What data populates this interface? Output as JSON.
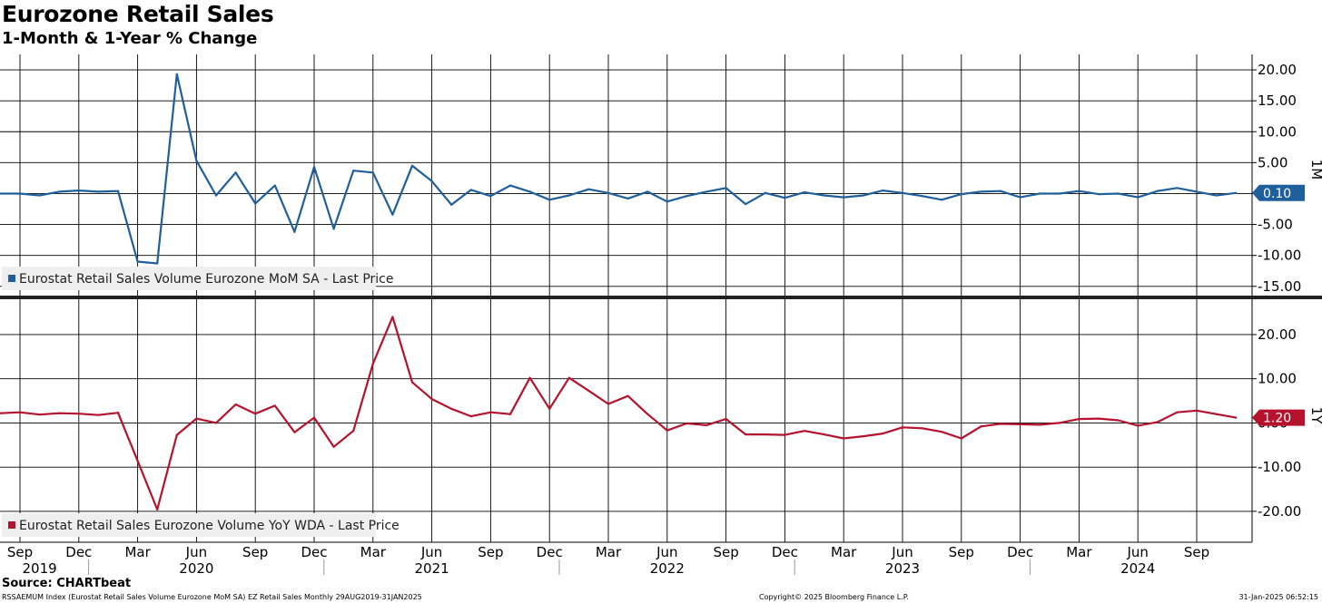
{
  "header": {
    "title": "Eurozone Retail Sales",
    "subtitle": "1-Month & 1-Year % Change"
  },
  "footer": {
    "source": "Source: CHARTbeat",
    "index_line": "RSSAEMUM Index (Eurostat Retail Sales Volume Eurozone MoM SA) EZ Retail Sales  Monthly 29AUG2019-31JAN2025",
    "copyright": "Copyright© 2025 Bloomberg Finance L.P.",
    "timestamp": "31-Jan-2025 06:52:15"
  },
  "colors": {
    "mom": "#1f5f9b",
    "yoy": "#b5122d",
    "grid": "#000000"
  },
  "chart_data": [
    {
      "type": "line",
      "panel": "top",
      "panel_label": "1M",
      "legend": "Eurostat Retail Sales Volume Eurozone MoM SA - Last Price",
      "legend_position": "bottom-left",
      "last_value_label": "0.10",
      "ylim": [
        -16.5,
        22.5
      ],
      "yticks": [
        "20.00",
        "15.00",
        "10.00",
        "5.00",
        "0.00",
        "-5.00",
        "-10.00",
        "-15.00"
      ],
      "grid": true,
      "series": [
        {
          "x": [
            "2019-08",
            "2019-09",
            "2019-10",
            "2019-11",
            "2019-12",
            "2020-01",
            "2020-02",
            "2020-03",
            "2020-04",
            "2020-05",
            "2020-06",
            "2020-07",
            "2020-08",
            "2020-09",
            "2020-10",
            "2020-11",
            "2020-12",
            "2021-01",
            "2021-02",
            "2021-03",
            "2021-04",
            "2021-05",
            "2021-06",
            "2021-07",
            "2021-08",
            "2021-09",
            "2021-10",
            "2021-11",
            "2021-12",
            "2022-01",
            "2022-02",
            "2022-03",
            "2022-04",
            "2022-05",
            "2022-06",
            "2022-07",
            "2022-08",
            "2022-09",
            "2022-10",
            "2022-11",
            "2022-12",
            "2023-01",
            "2023-02",
            "2023-03",
            "2023-04",
            "2023-05",
            "2023-06",
            "2023-07",
            "2023-08",
            "2023-09",
            "2023-10",
            "2023-11",
            "2023-12",
            "2024-01",
            "2024-02",
            "2024-03",
            "2024-04",
            "2024-05",
            "2024-06",
            "2024-07",
            "2024-08",
            "2024-09",
            "2024-10",
            "2024-11"
          ],
          "values": [
            0.0,
            0.0,
            -0.3,
            0.3,
            0.5,
            0.3,
            0.4,
            -11.0,
            -11.3,
            19.3,
            5.3,
            -0.3,
            3.4,
            -1.6,
            1.3,
            -6.2,
            4.3,
            -5.7,
            3.7,
            3.4,
            -3.4,
            4.5,
            2.0,
            -1.8,
            0.6,
            -0.4,
            1.3,
            0.3,
            -1.0,
            -0.3,
            0.7,
            0.1,
            -0.8,
            0.3,
            -1.3,
            -0.4,
            0.3,
            0.9,
            -1.7,
            0.1,
            -0.7,
            0.2,
            -0.3,
            -0.6,
            -0.3,
            0.5,
            0.1,
            -0.4,
            -1.0,
            -0.1,
            0.3,
            0.4,
            -0.6,
            0.0,
            0.0,
            0.4,
            -0.1,
            0.0,
            -0.6,
            0.4,
            0.9,
            0.3,
            -0.3,
            0.1
          ]
        }
      ]
    },
    {
      "type": "line",
      "panel": "bottom",
      "panel_label": "1Y",
      "legend": "Eurostat Retail Sales Eurozone Volume YoY WDA - Last Price",
      "legend_position": "bottom-left",
      "last_value_label": "1.20",
      "ylim": [
        -27,
        28
      ],
      "yticks": [
        "20.00",
        "10.00",
        "0.00",
        "-10.00",
        "-20.00"
      ],
      "grid": true,
      "series": [
        {
          "x": [
            "2019-08",
            "2019-09",
            "2019-10",
            "2019-11",
            "2019-12",
            "2020-01",
            "2020-02",
            "2020-03",
            "2020-04",
            "2020-05",
            "2020-06",
            "2020-07",
            "2020-08",
            "2020-09",
            "2020-10",
            "2020-11",
            "2020-12",
            "2021-01",
            "2021-02",
            "2021-03",
            "2021-04",
            "2021-05",
            "2021-06",
            "2021-07",
            "2021-08",
            "2021-09",
            "2021-10",
            "2021-11",
            "2021-12",
            "2022-01",
            "2022-02",
            "2022-03",
            "2022-04",
            "2022-05",
            "2022-06",
            "2022-07",
            "2022-08",
            "2022-09",
            "2022-10",
            "2022-11",
            "2022-12",
            "2023-01",
            "2023-02",
            "2023-03",
            "2023-04",
            "2023-05",
            "2023-06",
            "2023-07",
            "2023-08",
            "2023-09",
            "2023-10",
            "2023-11",
            "2023-12",
            "2024-01",
            "2024-02",
            "2024-03",
            "2024-04",
            "2024-05",
            "2024-06",
            "2024-07",
            "2024-08",
            "2024-09",
            "2024-10",
            "2024-11"
          ],
          "values": [
            2.2,
            2.4,
            1.9,
            2.2,
            2.1,
            1.8,
            2.3,
            -8.6,
            -19.6,
            -2.7,
            1.0,
            0.0,
            4.2,
            2.1,
            3.9,
            -2.1,
            1.2,
            -5.4,
            -1.8,
            13.4,
            24.0,
            9.2,
            5.4,
            3.2,
            1.5,
            2.4,
            2.0,
            10.2,
            3.2,
            10.2,
            7.3,
            4.3,
            6.1,
            2.0,
            -1.7,
            -0.1,
            -0.5,
            0.9,
            -2.6,
            -2.6,
            -2.7,
            -1.8,
            -2.6,
            -3.5,
            -3.0,
            -2.4,
            -1.0,
            -1.2,
            -2.0,
            -3.5,
            -0.8,
            -0.2,
            -0.3,
            -0.4,
            0.0,
            0.9,
            1.0,
            0.6,
            -0.6,
            0.2,
            2.4,
            2.8,
            2.0,
            1.2
          ]
        }
      ]
    }
  ],
  "x_axis": {
    "month_labels": [
      {
        "date": "2019-09",
        "label": "Sep"
      },
      {
        "date": "2019-12",
        "label": "Dec"
      },
      {
        "date": "2020-03",
        "label": "Mar"
      },
      {
        "date": "2020-06",
        "label": "Jun"
      },
      {
        "date": "2020-09",
        "label": "Sep"
      },
      {
        "date": "2020-12",
        "label": "Dec"
      },
      {
        "date": "2021-03",
        "label": "Mar"
      },
      {
        "date": "2021-06",
        "label": "Jun"
      },
      {
        "date": "2021-09",
        "label": "Sep"
      },
      {
        "date": "2021-12",
        "label": "Dec"
      },
      {
        "date": "2022-03",
        "label": "Mar"
      },
      {
        "date": "2022-06",
        "label": "Jun"
      },
      {
        "date": "2022-09",
        "label": "Sep"
      },
      {
        "date": "2022-12",
        "label": "Dec"
      },
      {
        "date": "2023-03",
        "label": "Mar"
      },
      {
        "date": "2023-06",
        "label": "Jun"
      },
      {
        "date": "2023-09",
        "label": "Sep"
      },
      {
        "date": "2023-12",
        "label": "Dec"
      },
      {
        "date": "2024-03",
        "label": "Mar"
      },
      {
        "date": "2024-06",
        "label": "Jun"
      },
      {
        "date": "2024-09",
        "label": "Sep"
      }
    ],
    "year_labels": [
      {
        "date": "2019-10",
        "label": "2019"
      },
      {
        "date": "2020-06",
        "label": "2020"
      },
      {
        "date": "2021-06",
        "label": "2021"
      },
      {
        "date": "2022-06",
        "label": "2022"
      },
      {
        "date": "2023-06",
        "label": "2023"
      },
      {
        "date": "2024-06",
        "label": "2024"
      }
    ],
    "year_boundaries": [
      "2020-01",
      "2021-01",
      "2022-01",
      "2023-01",
      "2024-01"
    ]
  }
}
